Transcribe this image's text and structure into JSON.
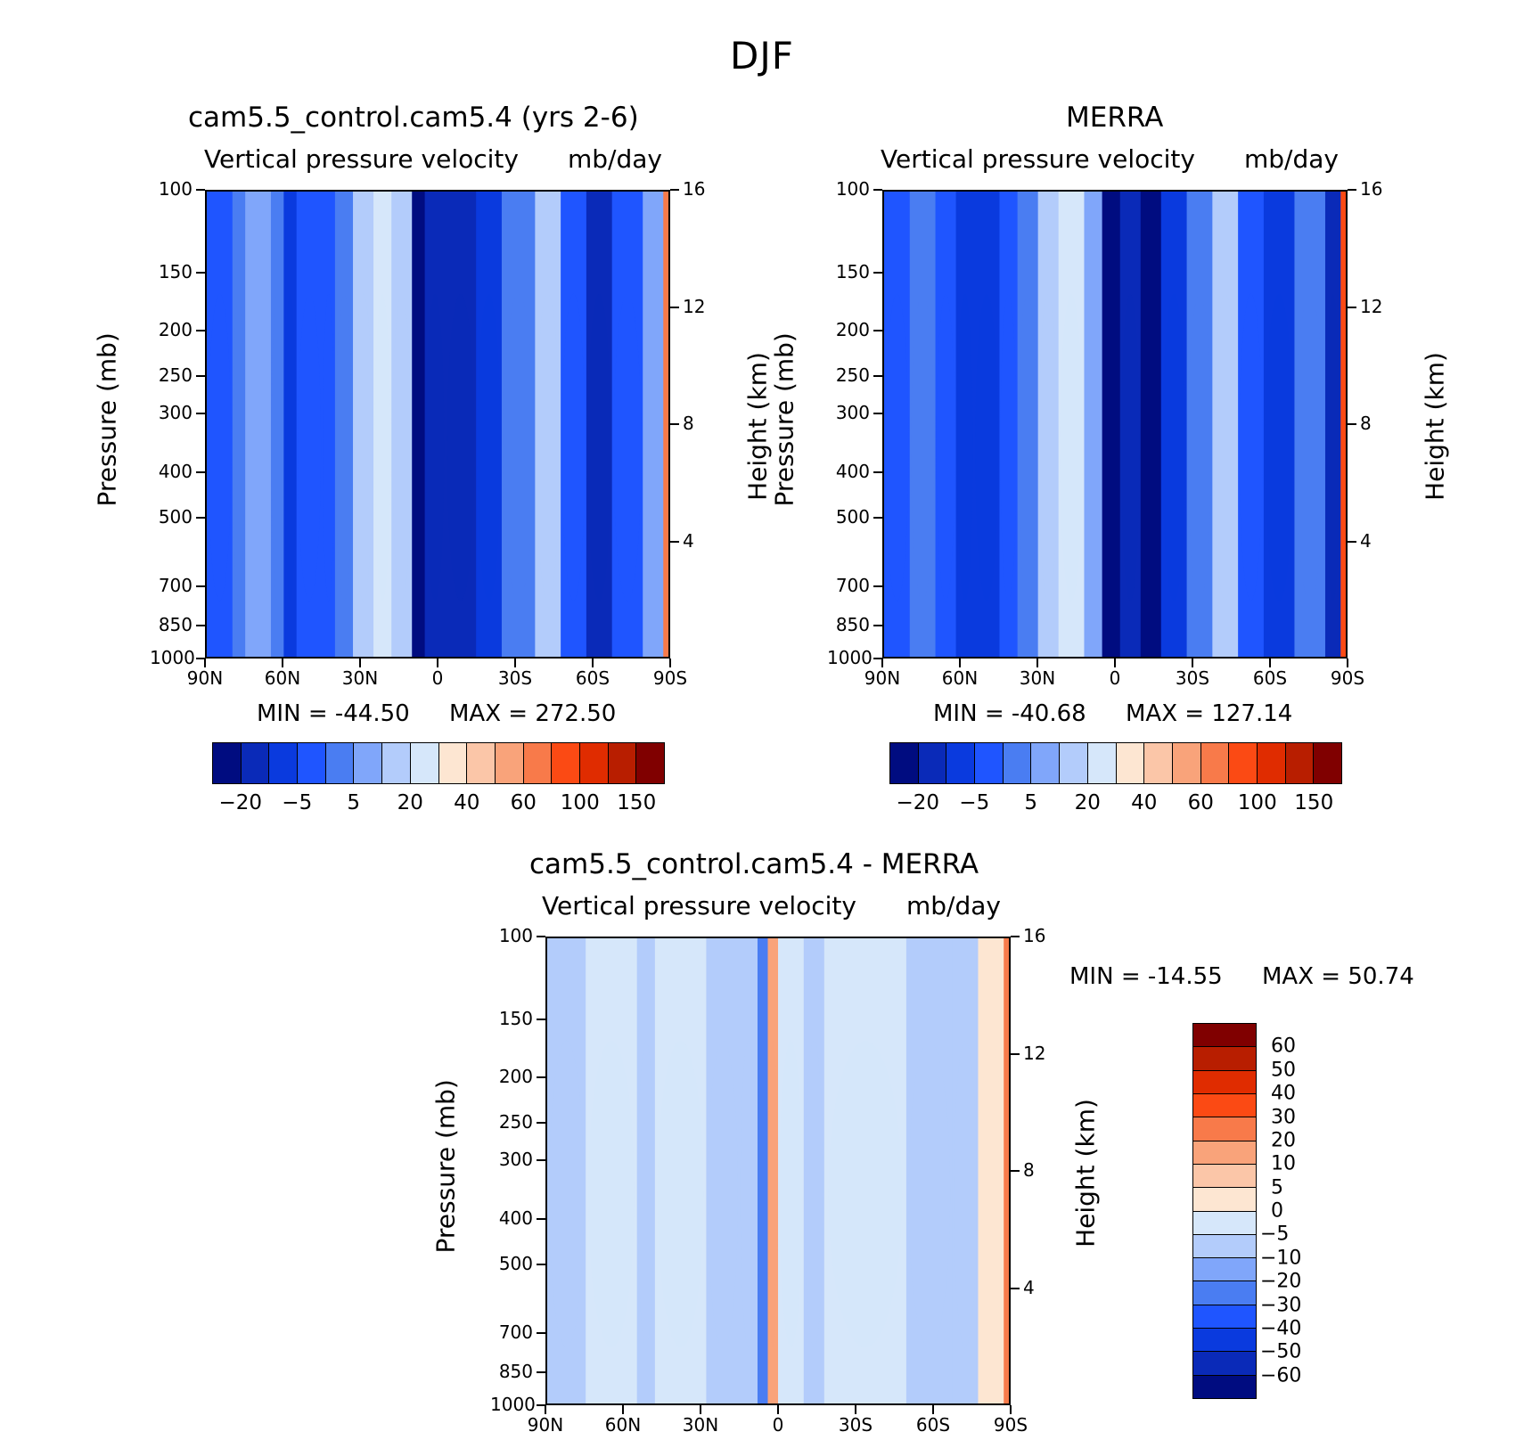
{
  "title": "DJF",
  "colors": {
    "abs_scale": [
      "#000c80",
      "#0a2ab8",
      "#0a3ade",
      "#1f55ff",
      "#4a7df2",
      "#80a6fa",
      "#b3ccfb",
      "#d6e7fa",
      "#fde6d2",
      "#fbc6a8",
      "#f9a37a",
      "#f87a4a",
      "#fb4a14",
      "#e02c00",
      "#b81e00",
      "#800000"
    ],
    "diff_scale": [
      "#800000",
      "#b81e00",
      "#e02c00",
      "#fb4a14",
      "#f87a4a",
      "#f9a37a",
      "#fde6d2",
      "#d6e7fa",
      "#b3ccfb",
      "#80a6fa",
      "#4a7df2",
      "#1f55ff",
      "#0a3ade",
      "#0a2ab8",
      "#000c80"
    ]
  },
  "chart_data": [
    {
      "type": "heatmap",
      "title": "cam5.5_control.cam5.4 (yrs 2-6)",
      "subtitle_left": "Vertical pressure velocity",
      "subtitle_right": "mb/day",
      "xlabel": "",
      "ylabel": "Pressure (mb)",
      "y2label": "Height (km)",
      "x_ticks": [
        "90N",
        "60N",
        "30N",
        "0",
        "30S",
        "60S",
        "90S"
      ],
      "y_ticks": [
        "100",
        "150",
        "200",
        "250",
        "300",
        "400",
        "500",
        "700",
        "850",
        "1000"
      ],
      "y2_ticks": [
        "16",
        "12",
        "8",
        "4"
      ],
      "ylim": [
        1000,
        100
      ],
      "min_text": "MIN = -44.50",
      "max_text": "MAX = 272.50",
      "colorbar_labels": [
        "-20",
        "-5",
        "5",
        "20",
        "40",
        "60",
        "100",
        "150"
      ],
      "levels": [
        -20,
        -10,
        -5,
        0,
        5,
        10,
        20,
        30,
        40,
        50,
        60,
        80,
        100,
        125,
        150
      ],
      "bands": [
        {
          "lat": 90,
          "value": -5
        },
        {
          "lat": 80,
          "value": 3
        },
        {
          "lat": 75,
          "value": 5
        },
        {
          "lat": 65,
          "value": 0
        },
        {
          "lat": 60,
          "value": -8
        },
        {
          "lat": 55,
          "value": -3
        },
        {
          "lat": 45,
          "value": -2
        },
        {
          "lat": 40,
          "value": 4
        },
        {
          "lat": 33,
          "value": 10
        },
        {
          "lat": 25,
          "value": 25
        },
        {
          "lat": 18,
          "value": 12
        },
        {
          "lat": 10,
          "value": -25
        },
        {
          "lat": 5,
          "value": -12
        },
        {
          "lat": -3,
          "value": -20
        },
        {
          "lat": -15,
          "value": -6
        },
        {
          "lat": -25,
          "value": 4
        },
        {
          "lat": -38,
          "value": 10
        },
        {
          "lat": -48,
          "value": -3
        },
        {
          "lat": -58,
          "value": -12
        },
        {
          "lat": -68,
          "value": -5
        },
        {
          "lat": -80,
          "value": 5
        },
        {
          "lat": -88,
          "value": 60
        }
      ]
    },
    {
      "type": "heatmap",
      "title": "MERRA",
      "subtitle_left": "Vertical pressure velocity",
      "subtitle_right": "mb/day",
      "xlabel": "",
      "ylabel": "Pressure (mb)",
      "y2label": "Height (km)",
      "x_ticks": [
        "90N",
        "60N",
        "30N",
        "0",
        "30S",
        "60S",
        "90S"
      ],
      "y_ticks": [
        "100",
        "150",
        "200",
        "250",
        "300",
        "400",
        "500",
        "700",
        "850",
        "1000"
      ],
      "y2_ticks": [
        "16",
        "12",
        "8",
        "4"
      ],
      "ylim": [
        1000,
        100
      ],
      "min_text": "MIN = -40.68",
      "max_text": "MAX = 127.14",
      "colorbar_labels": [
        "-20",
        "-5",
        "5",
        "20",
        "40",
        "60",
        "100",
        "150"
      ],
      "levels": [
        -20,
        -10,
        -5,
        0,
        5,
        10,
        20,
        30,
        40,
        50,
        60,
        80,
        100,
        125,
        150
      ],
      "bands": [
        {
          "lat": 90,
          "value": -3
        },
        {
          "lat": 80,
          "value": 4
        },
        {
          "lat": 70,
          "value": -2
        },
        {
          "lat": 62,
          "value": -10
        },
        {
          "lat": 55,
          "value": -6
        },
        {
          "lat": 45,
          "value": -3
        },
        {
          "lat": 38,
          "value": 3
        },
        {
          "lat": 30,
          "value": 12
        },
        {
          "lat": 22,
          "value": 25
        },
        {
          "lat": 12,
          "value": 8
        },
        {
          "lat": 5,
          "value": -25
        },
        {
          "lat": -2,
          "value": -15
        },
        {
          "lat": -10,
          "value": -22
        },
        {
          "lat": -18,
          "value": -10
        },
        {
          "lat": -28,
          "value": 3
        },
        {
          "lat": -38,
          "value": 12
        },
        {
          "lat": -48,
          "value": -3
        },
        {
          "lat": -58,
          "value": -8
        },
        {
          "lat": -70,
          "value": 2
        },
        {
          "lat": -82,
          "value": -12
        },
        {
          "lat": -88,
          "value": 80
        }
      ]
    },
    {
      "type": "heatmap",
      "title": "cam5.5_control.cam5.4 - MERRA",
      "subtitle_left": "Vertical pressure velocity",
      "subtitle_right": "mb/day",
      "xlabel": "",
      "ylabel": "Pressure (mb)",
      "y2label": "Height (km)",
      "x_ticks": [
        "90N",
        "60N",
        "30N",
        "0",
        "30S",
        "60S",
        "90S"
      ],
      "y_ticks": [
        "100",
        "150",
        "200",
        "250",
        "300",
        "400",
        "500",
        "700",
        "850",
        "1000"
      ],
      "y2_ticks": [
        "16",
        "12",
        "8",
        "4"
      ],
      "ylim": [
        1000,
        100
      ],
      "min_text": "MIN = -14.55",
      "max_text": "MAX =   50.74",
      "colorbar_labels": [
        "60",
        "50",
        "40",
        "30",
        "20",
        "10",
        "5",
        "0",
        "-5",
        "-10",
        "-20",
        "-30",
        "-40",
        "-50",
        "-60"
      ],
      "levels": [
        60,
        50,
        40,
        30,
        20,
        10,
        5,
        0,
        -5,
        -10,
        -20,
        -30,
        -40,
        -50,
        -60
      ],
      "bands": [
        {
          "lat": 90,
          "value": -2
        },
        {
          "lat": 75,
          "value": 2
        },
        {
          "lat": 55,
          "value": -2
        },
        {
          "lat": 48,
          "value": 2
        },
        {
          "lat": 28,
          "value": -2
        },
        {
          "lat": 15,
          "value": -3
        },
        {
          "lat": 8,
          "value": -12
        },
        {
          "lat": 4,
          "value": 12
        },
        {
          "lat": 0,
          "value": 2
        },
        {
          "lat": -10,
          "value": -3
        },
        {
          "lat": -18,
          "value": 2
        },
        {
          "lat": -50,
          "value": -2
        },
        {
          "lat": -68,
          "value": -2
        },
        {
          "lat": -78,
          "value": 8
        },
        {
          "lat": -88,
          "value": 20
        }
      ]
    }
  ]
}
